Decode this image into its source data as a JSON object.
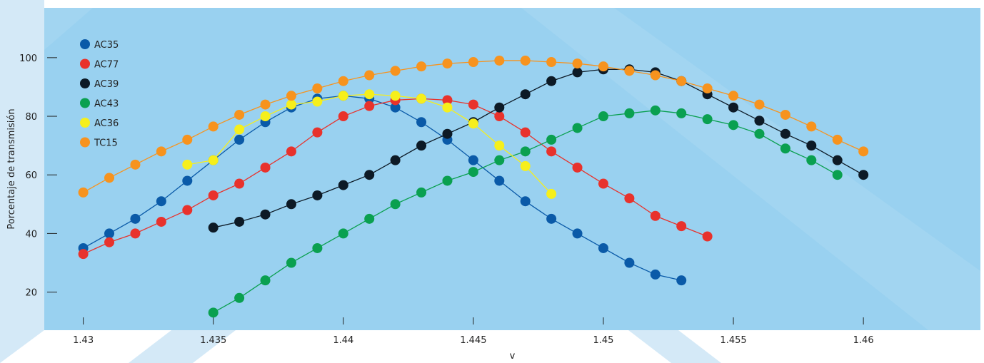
{
  "chart_data": {
    "type": "line",
    "title": "",
    "xlabel": "v",
    "ylabel": "Porcentaje de transmisión",
    "xlim": [
      1.4285,
      1.4645
    ],
    "ylim": [
      7,
      117
    ],
    "xticks": [
      "1.43",
      "1.435",
      "1.44",
      "1.445",
      "1.45",
      "1.455",
      "1.46"
    ],
    "xtick_values": [
      1.43,
      1.435,
      1.44,
      1.445,
      1.45,
      1.455,
      1.46
    ],
    "yticks": [
      "20",
      "40",
      "60",
      "80",
      "100"
    ],
    "ytick_values": [
      20,
      40,
      60,
      80,
      100
    ],
    "grid": false,
    "legend_position": "top-left",
    "colors": {
      "plot_background": "#99d1f0",
      "decor_band": "#d4e9f7"
    },
    "series": [
      {
        "name": "AC35",
        "color": "#0a5aa8",
        "x": [
          1.43,
          1.431,
          1.432,
          1.433,
          1.434,
          1.435,
          1.436,
          1.437,
          1.438,
          1.439,
          1.44,
          1.441,
          1.442,
          1.443,
          1.444,
          1.445,
          1.446,
          1.447,
          1.448,
          1.449,
          1.45,
          1.451,
          1.452,
          1.453
        ],
        "y": [
          35,
          40,
          45,
          51,
          58,
          65,
          72,
          78,
          83,
          86,
          87,
          86,
          83,
          78,
          72,
          65,
          58,
          51,
          45,
          40,
          35,
          30,
          26,
          24
        ]
      },
      {
        "name": "AC77",
        "color": "#e8322c",
        "x": [
          1.43,
          1.431,
          1.432,
          1.433,
          1.434,
          1.435,
          1.436,
          1.437,
          1.438,
          1.439,
          1.44,
          1.441,
          1.442,
          1.443,
          1.444,
          1.445,
          1.446,
          1.447,
          1.448,
          1.449,
          1.45,
          1.451,
          1.452,
          1.453,
          1.454
        ],
        "y": [
          33,
          37,
          40,
          44,
          48,
          53,
          57,
          62.5,
          68,
          74.5,
          80,
          83.5,
          85.5,
          86,
          85.5,
          84,
          80,
          74.5,
          68,
          62.5,
          57,
          52,
          46,
          42.5,
          39
        ]
      },
      {
        "name": "AC39",
        "color": "#0d1a26",
        "x": [
          1.435,
          1.436,
          1.437,
          1.438,
          1.439,
          1.44,
          1.441,
          1.442,
          1.443,
          1.444,
          1.445,
          1.446,
          1.447,
          1.448,
          1.449,
          1.45,
          1.451,
          1.452,
          1.453,
          1.454,
          1.455,
          1.456,
          1.457,
          1.458,
          1.459,
          1.46
        ],
        "y": [
          42,
          44,
          46.5,
          50,
          53,
          56.5,
          60,
          65,
          70,
          74,
          78,
          83,
          87.5,
          92,
          95,
          96,
          96,
          95,
          92,
          87.5,
          83,
          78.5,
          74,
          70,
          65,
          60
        ]
      },
      {
        "name": "AC43",
        "color": "#0aa050",
        "x": [
          1.435,
          1.436,
          1.437,
          1.438,
          1.439,
          1.44,
          1.441,
          1.442,
          1.443,
          1.444,
          1.445,
          1.446,
          1.447,
          1.448,
          1.449,
          1.45,
          1.451,
          1.452,
          1.453,
          1.454,
          1.455,
          1.456,
          1.457,
          1.458,
          1.459
        ],
        "y": [
          13,
          18,
          24,
          30,
          35,
          40,
          45,
          50,
          54,
          58,
          61,
          65,
          68,
          72,
          76,
          80,
          81,
          82,
          81,
          79,
          77,
          74,
          69,
          65,
          60
        ]
      },
      {
        "name": "AC36",
        "color": "#f6ef1c",
        "x": [
          1.434,
          1.435,
          1.436,
          1.437,
          1.438,
          1.439,
          1.44,
          1.441,
          1.442,
          1.443,
          1.444,
          1.445,
          1.446,
          1.447,
          1.448
        ],
        "y": [
          63.5,
          65,
          75.5,
          80,
          84,
          85,
          87,
          87.5,
          87,
          86,
          83,
          77.5,
          70,
          63,
          53.5
        ]
      },
      {
        "name": "TC15",
        "color": "#f7931e",
        "x": [
          1.43,
          1.431,
          1.432,
          1.433,
          1.434,
          1.435,
          1.436,
          1.437,
          1.438,
          1.439,
          1.44,
          1.441,
          1.442,
          1.443,
          1.444,
          1.445,
          1.446,
          1.447,
          1.448,
          1.449,
          1.45,
          1.451,
          1.452,
          1.453,
          1.454,
          1.455,
          1.456,
          1.457,
          1.458,
          1.459,
          1.46
        ],
        "y": [
          54,
          59,
          63.5,
          68,
          72,
          76.5,
          80.5,
          84,
          87,
          89.5,
          92,
          94,
          95.5,
          97,
          98,
          98.5,
          99,
          99,
          98.5,
          98,
          97,
          95.5,
          94,
          92,
          89.5,
          87,
          84,
          80.5,
          76.5,
          72,
          68
        ]
      }
    ]
  }
}
